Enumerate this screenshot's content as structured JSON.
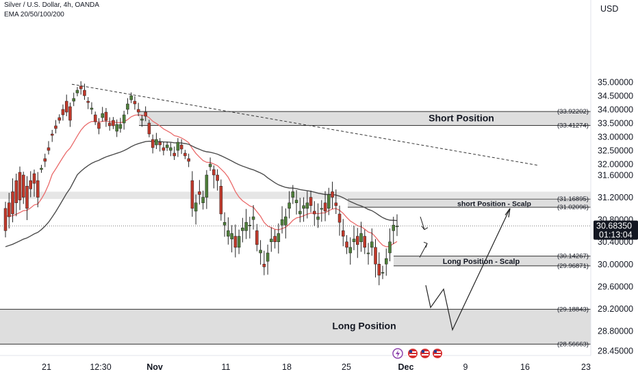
{
  "header": {
    "symbol": "Silver / U.S. Dollar, 4h, OANDA",
    "indicator": "EMA 20/50/100/200"
  },
  "currency": "USD",
  "last_price": "30.68350",
  "countdown": "01:13:04",
  "colors": {
    "up": "#4f7f3a",
    "down": "#c0392b",
    "ema_fast": "#ea6a6a",
    "ema_slow": "#4b4b4b",
    "zone_fill": "#d6d6d6",
    "price_tag": "#131722"
  },
  "chart_data": {
    "type": "candlestick",
    "y_ticks": [
      "35.00000",
      "34.50000",
      "34.00000",
      "33.50000",
      "33.00000",
      "32.50000",
      "32.00000",
      "31.60000",
      "31.20000",
      "30.80000",
      "30.40000",
      "30.00000",
      "29.60000",
      "29.20000",
      "28.80000",
      "28.45000"
    ],
    "x_ticks": [
      "21",
      "12:30",
      "Nov",
      "11",
      "18",
      "25",
      "Dec",
      "9",
      "16",
      "23"
    ],
    "zones": [
      {
        "label": "Short Position",
        "upper": "(33.92202)",
        "lower": "(33.41274)"
      },
      {
        "label": "short Position - Scalp",
        "upper": "(31.16895)",
        "lower": "(31.02096)"
      },
      {
        "label": "Long Position - Scalp",
        "upper": "(30.14267)",
        "lower": "(29.96871)"
      },
      {
        "label": "Long Position",
        "upper": "(29.18843)",
        "lower": "(28.56663)"
      }
    ],
    "trendline": {
      "from": [
        "Oct 22",
        34.92
      ],
      "to": [
        "Dec 17",
        31.95
      ]
    },
    "projection": [
      30.85,
      30.62,
      30.37,
      30.12,
      29.95,
      29.22,
      29.5,
      29.17,
      28.82,
      31.0
    ],
    "path": [
      [
        31.0,
        30.6
      ],
      [
        31.1,
        30.85
      ],
      [
        31.3,
        30.9
      ],
      [
        31.5,
        31.1
      ],
      [
        31.7,
        31.15
      ],
      [
        31.6,
        31.2
      ],
      [
        31.4,
        31.0
      ],
      [
        31.5,
        31.35
      ],
      [
        31.65,
        31.45
      ],
      [
        31.5,
        31.2
      ],
      [
        31.8,
        31.85
      ],
      [
        32.2,
        32.1
      ],
      [
        32.6,
        32.5
      ],
      [
        33.1,
        33.05
      ],
      [
        33.4,
        33.3
      ],
      [
        33.7,
        33.6
      ],
      [
        34.0,
        33.8
      ],
      [
        34.3,
        33.9
      ],
      [
        34.1,
        33.6
      ],
      [
        34.3,
        34.4
      ],
      [
        34.6,
        34.7
      ],
      [
        34.85,
        34.75
      ],
      [
        34.7,
        34.5
      ],
      [
        34.3,
        34.25
      ],
      [
        34.0,
        34.05
      ],
      [
        33.8,
        33.55
      ],
      [
        33.5,
        33.3
      ],
      [
        33.7,
        33.85
      ],
      [
        33.9,
        33.6
      ],
      [
        33.5,
        33.4
      ],
      [
        33.6,
        33.4
      ],
      [
        33.2,
        33.45
      ],
      [
        33.3,
        33.45
      ],
      [
        33.5,
        33.8
      ],
      [
        34.0,
        34.2
      ],
      [
        34.35,
        34.5
      ],
      [
        34.3,
        34.2
      ],
      [
        34.0,
        33.9
      ],
      [
        33.6,
        33.65
      ],
      [
        33.9,
        33.75
      ],
      [
        33.5,
        33.1
      ],
      [
        32.9,
        32.6
      ],
      [
        32.7,
        32.9
      ],
      [
        32.8,
        32.7
      ],
      [
        32.6,
        32.5
      ],
      [
        32.6,
        32.7
      ],
      [
        32.5,
        32.6
      ],
      [
        32.4,
        32.3
      ],
      [
        32.5,
        32.8
      ],
      [
        32.7,
        32.55
      ],
      [
        32.4,
        32.3
      ],
      [
        32.2,
        32.1
      ],
      [
        31.5,
        31.0
      ],
      [
        30.95,
        31.1
      ],
      [
        31.3,
        31.25
      ],
      [
        31.1,
        31.2
      ],
      [
        31.2,
        31.6
      ],
      [
        31.9,
        32.0
      ],
      [
        31.8,
        31.6
      ],
      [
        31.6,
        31.5
      ],
      [
        31.4,
        30.9
      ],
      [
        30.7,
        30.75
      ],
      [
        30.5,
        30.6
      ],
      [
        30.45,
        30.55
      ],
      [
        30.5,
        30.3
      ],
      [
        30.3,
        30.5
      ],
      [
        30.6,
        30.65
      ],
      [
        30.6,
        30.75
      ],
      [
        30.7,
        30.7
      ],
      [
        30.8,
        30.85
      ],
      [
        30.6,
        30.35
      ],
      [
        30.2,
        30.25
      ],
      [
        30.0,
        29.95
      ],
      [
        30.05,
        30.2
      ],
      [
        30.4,
        30.45
      ],
      [
        30.5,
        30.4
      ],
      [
        30.4,
        30.55
      ],
      [
        30.7,
        30.8
      ],
      [
        30.7,
        30.85
      ],
      [
        31.0,
        31.1
      ],
      [
        31.2,
        31.3
      ],
      [
        31.1,
        31.15
      ],
      [
        30.9,
        30.95
      ],
      [
        31.0,
        31.05
      ],
      [
        31.0,
        31.1
      ],
      [
        31.2,
        31.05
      ],
      [
        30.95,
        30.9
      ],
      [
        30.8,
        30.85
      ],
      [
        31.0,
        31.0
      ],
      [
        31.1,
        30.95
      ],
      [
        31.0,
        31.25
      ],
      [
        31.3,
        31.2
      ],
      [
        31.1,
        31.05
      ],
      [
        30.9,
        30.75
      ],
      [
        30.6,
        30.5
      ],
      [
        30.4,
        30.3
      ],
      [
        30.2,
        30.3
      ],
      [
        30.4,
        30.45
      ],
      [
        30.5,
        30.35
      ],
      [
        30.4,
        30.55
      ],
      [
        30.5,
        30.3
      ],
      [
        30.2,
        30.2
      ],
      [
        30.3,
        30.4
      ],
      [
        30.3,
        30.0
      ],
      [
        30.0,
        29.8
      ],
      [
        29.85,
        29.85
      ],
      [
        30.0,
        30.1
      ],
      [
        30.2,
        30.4
      ],
      [
        30.6,
        30.7
      ],
      [
        30.6835,
        30.6835
      ]
    ]
  }
}
